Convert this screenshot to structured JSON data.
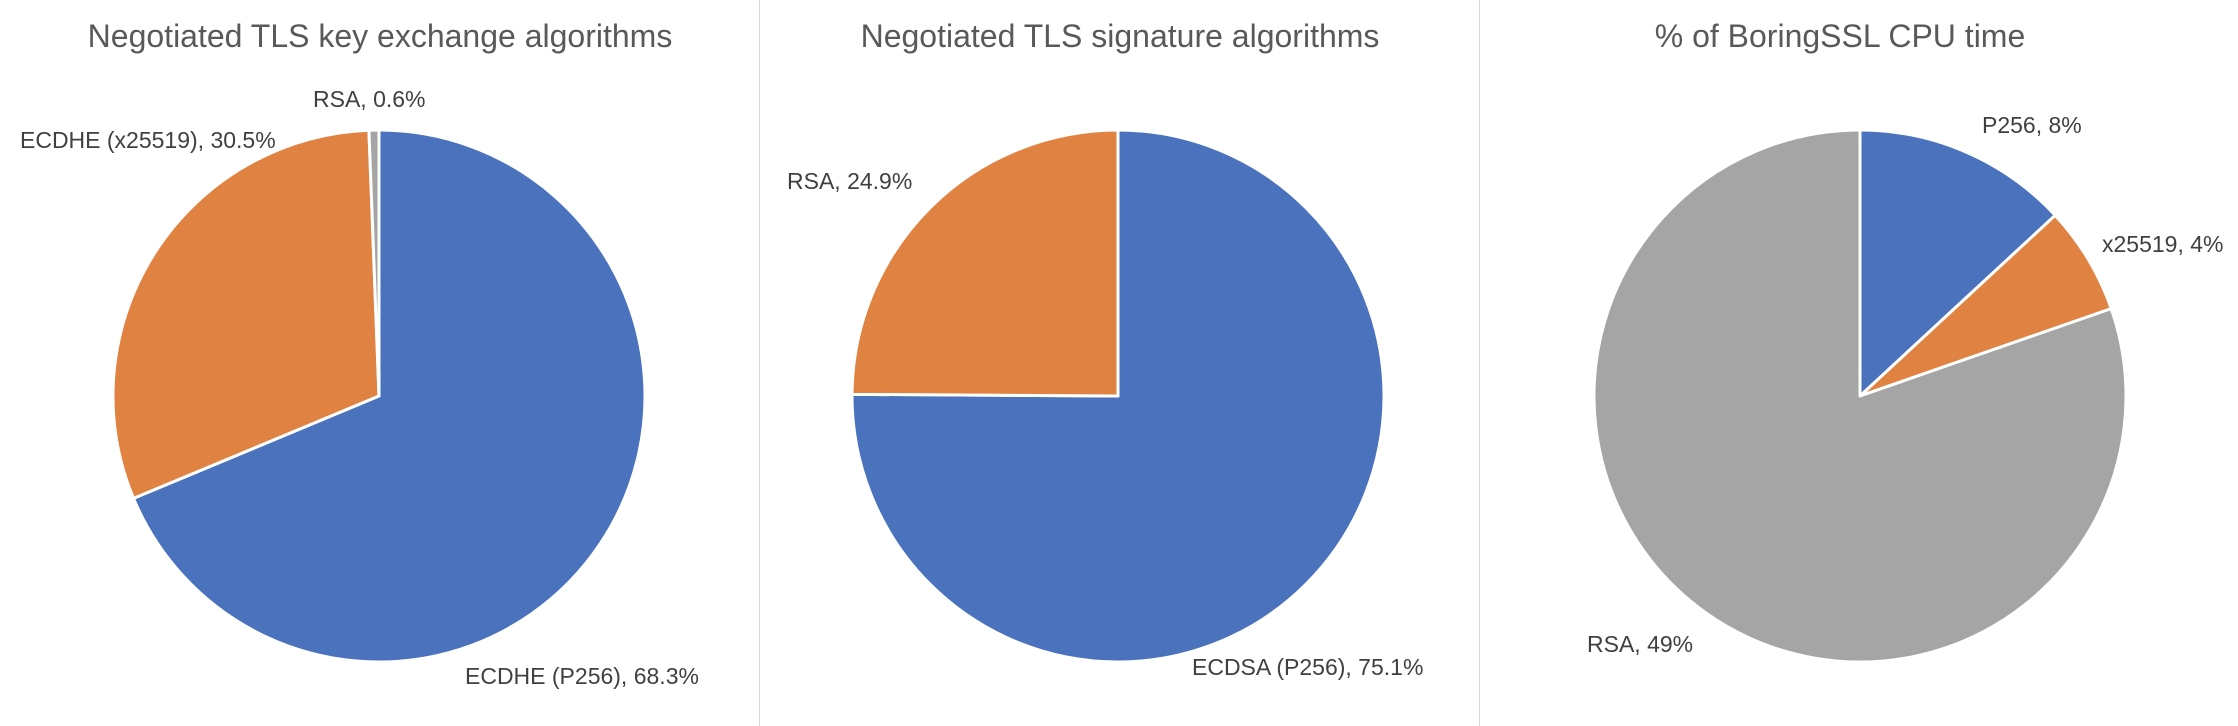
{
  "chart_data": [
    {
      "type": "pie",
      "title": "Negotiated TLS key exchange algorithms",
      "slices": [
        {
          "label": "ECDHE (P256), 68.3%",
          "name": "ECDHE (P256)",
          "value": 68.3,
          "color": "#4a72bd"
        },
        {
          "label": "ECDHE (x25519), 30.5%",
          "name": "ECDHE (x25519)",
          "value": 30.5,
          "color": "#e08242"
        },
        {
          "label": "RSA, 0.6%",
          "name": "RSA",
          "value": 0.6,
          "color": "#a5a5a5"
        }
      ]
    },
    {
      "type": "pie",
      "title": "Negotiated TLS signature algorithms",
      "slices": [
        {
          "label": "ECDSA (P256), 75.1%",
          "name": "ECDSA (P256)",
          "value": 75.1,
          "color": "#4a72bd"
        },
        {
          "label": "RSA, 24.9%",
          "name": "RSA",
          "value": 24.9,
          "color": "#e08242"
        }
      ]
    },
    {
      "type": "pie",
      "title": "% of BoringSSL CPU time",
      "slices": [
        {
          "label": "P256, 8%",
          "name": "P256",
          "value": 8,
          "color": "#4a72bd"
        },
        {
          "label": "x25519, 4%",
          "name": "x25519",
          "value": 4,
          "color": "#e08242"
        },
        {
          "label": "RSA, 49%",
          "name": "RSA",
          "value": 49,
          "color": "#a5a5a5"
        }
      ]
    }
  ]
}
